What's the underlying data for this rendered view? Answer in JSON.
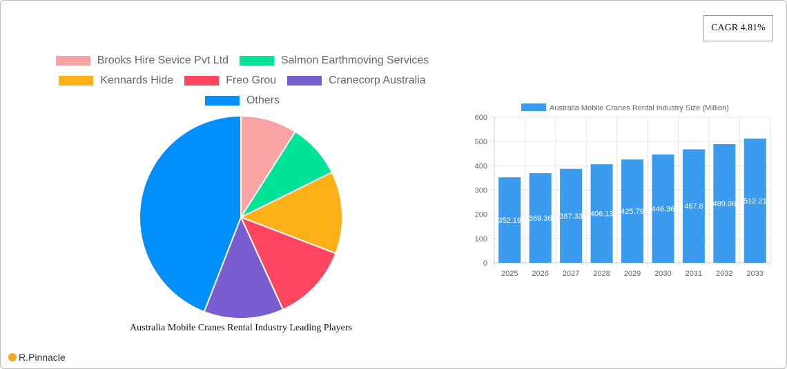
{
  "cagr_label": "CAGR 4.81%",
  "brand": "R.Pinnacle",
  "chart_data": [
    {
      "type": "pie",
      "title": "Australia Mobile Cranes Rental Industry Leading Players",
      "legend_position": "top",
      "categories": [
        "Brooks Hire Sevice Pvt Ltd",
        "Salmon Earthmoving Services",
        "Kennards Hide",
        "Freo Grou",
        "Cranecorp Australia",
        "Others"
      ],
      "values": [
        9.0,
        8.7,
        13.1,
        12.4,
        12.7,
        44.1
      ],
      "colors": [
        "#f9a3a4",
        "#00e396",
        "#feb019",
        "#ff4560",
        "#775dd0",
        "#008ffb"
      ]
    },
    {
      "type": "bar",
      "legend": "Australia Mobile Cranes Rental Industry Size (Million)",
      "legend_position": "top",
      "categories": [
        "2025",
        "2026",
        "2027",
        "2028",
        "2029",
        "2030",
        "2031",
        "2032",
        "2033"
      ],
      "values": [
        352.19,
        369.36,
        387.33,
        406.13,
        425.79,
        446.36,
        467.8,
        489.06,
        512.21
      ],
      "ylim": [
        0,
        600
      ],
      "yticks": [
        "0",
        "100",
        "200",
        "300",
        "400",
        "500",
        "600"
      ],
      "grid": true,
      "color": "#3a9bef"
    }
  ]
}
